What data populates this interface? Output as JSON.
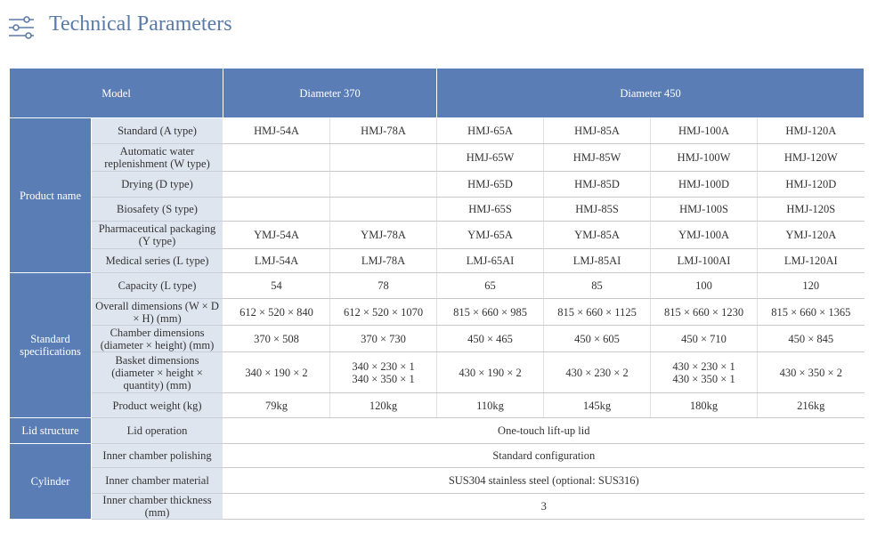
{
  "header": {
    "title": "Technical Parameters"
  },
  "table": {
    "columns": [
      "Model",
      "Diameter 370",
      "Diameter 450"
    ],
    "groups": [
      {
        "label": "Product name",
        "rows": [
          {
            "label": "Standard (A type)",
            "cells": [
              "HMJ-54A",
              "HMJ-78A",
              "HMJ-65A",
              "HMJ-85A",
              "HMJ-100A",
              "HMJ-120A"
            ]
          },
          {
            "label": "Automatic water replenishment (W type)",
            "cells": [
              null,
              null,
              "HMJ-65W",
              "HMJ-85W",
              "HMJ-100W",
              "HMJ-120W"
            ]
          },
          {
            "label": "Drying (D type)",
            "cells": [
              null,
              null,
              "HMJ-65D",
              "HMJ-85D",
              "HMJ-100D",
              "HMJ-120D"
            ]
          },
          {
            "label": "Biosafety (S type)",
            "cells": [
              null,
              null,
              "HMJ-65S",
              "HMJ-85S",
              "HMJ-100S",
              "HMJ-120S"
            ]
          },
          {
            "label": "Pharmaceutical packaging (Y type)",
            "cells": [
              "YMJ-54A",
              "YMJ-78A",
              "YMJ-65A",
              "YMJ-85A",
              "YMJ-100A",
              "YMJ-120A"
            ]
          },
          {
            "label": "Medical series (L type)",
            "cells": [
              "LMJ-54A",
              "LMJ-78A",
              "LMJ-65AI",
              "LMJ-85AI",
              "LMJ-100AI",
              "LMJ-120AI"
            ]
          }
        ]
      },
      {
        "label": "Standard specifications",
        "rows": [
          {
            "label": "Capacity (L type)",
            "cells": [
              "54",
              "78",
              "65",
              "85",
              "100",
              "120"
            ]
          },
          {
            "label": "Overall dimensions (W × D × H) (mm)",
            "cells": [
              "612 × 520 × 840",
              "612 × 520 × 1070",
              "815 × 660 × 985",
              "815 × 660 × 1125",
              "815 × 660 × 1230",
              "815 × 660 × 1365"
            ]
          },
          {
            "label": "Chamber dimensions (diameter × height) (mm)",
            "cells": [
              "370 × 508",
              "370 × 730",
              "450 × 465",
              "450 × 605",
              "450 × 710",
              "450 × 845"
            ]
          },
          {
            "label": "Basket dimensions (diameter × height × quantity) (mm)",
            "cells": [
              "340 × 190 × 2",
              [
                "340 × 230 × 1",
                "340 × 350 × 1"
              ],
              "430 × 190 × 2",
              "430 × 230 × 2",
              [
                "430 × 230 × 1",
                "430 × 350 × 1"
              ],
              "430 × 350 × 2"
            ]
          },
          {
            "label": "Product weight (kg)",
            "cells": [
              "79kg",
              "120kg",
              "110kg",
              "145kg",
              "180kg",
              "216kg"
            ]
          }
        ]
      },
      {
        "label": "Lid structure",
        "rows": [
          {
            "label": "Lid operation",
            "cells": [
              "One-touch lift-up lid"
            ]
          }
        ]
      },
      {
        "label": "Cylinder",
        "rows": [
          {
            "label": "Inner chamber polishing",
            "cells": [
              "Standard configuration"
            ]
          },
          {
            "label": "Inner chamber material",
            "cells": [
              "SUS304 stainless steel (optional: SUS316)"
            ]
          },
          {
            "label": "Inner chamber thickness (mm)",
            "cells": [
              "3"
            ]
          }
        ]
      }
    ]
  }
}
